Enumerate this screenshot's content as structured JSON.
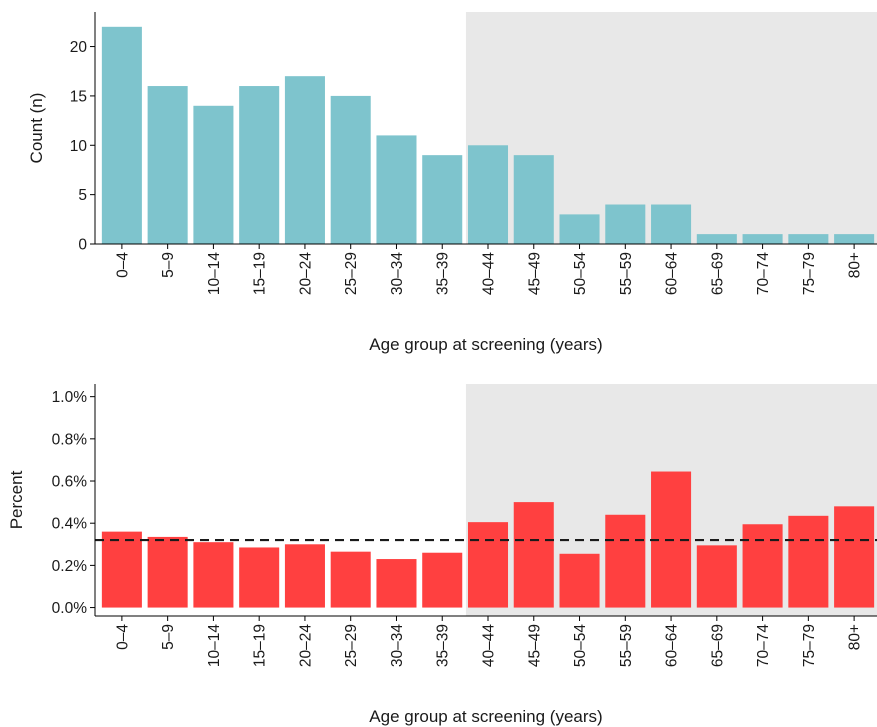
{
  "chart_data": [
    {
      "type": "bar",
      "categories": [
        "0–4",
        "5–9",
        "10–14",
        "15–19",
        "20–24",
        "25–29",
        "30–34",
        "35–39",
        "40–44",
        "45–49",
        "50–54",
        "55–59",
        "60–64",
        "65–69",
        "70–74",
        "75–79",
        "80+"
      ],
      "values": [
        22,
        16,
        14,
        16,
        17,
        15,
        11,
        9,
        10,
        9,
        3,
        4,
        4,
        1,
        1,
        1,
        1
      ],
      "xlabel": "Age group at screening (years)",
      "ylabel": "Count (n)",
      "ylim": [
        0,
        23.5
      ],
      "yticks": [
        0,
        5,
        10,
        15,
        20
      ],
      "ytick_labels": [
        "0",
        "5",
        "10",
        "15",
        "20"
      ],
      "shaded_from_category": "40–44",
      "grid": false,
      "colors": {
        "bar": "#7ec4cd",
        "shade": "#e8e8e8"
      }
    },
    {
      "type": "bar",
      "categories": [
        "0–4",
        "5–9",
        "10–14",
        "15–19",
        "20–24",
        "25–29",
        "30–34",
        "35–39",
        "40–44",
        "45–49",
        "50–54",
        "55–59",
        "60–64",
        "65–69",
        "70–74",
        "75–79",
        "80+"
      ],
      "values": [
        0.36,
        0.335,
        0.31,
        0.285,
        0.3,
        0.265,
        0.23,
        0.26,
        0.405,
        0.5,
        0.255,
        0.44,
        0.645,
        0.295,
        0.395,
        0.435,
        0.48
      ],
      "xlabel": "Age group at screening (years)",
      "ylabel": "Percent",
      "ylim": [
        -0.04,
        1.06
      ],
      "yticks": [
        0.0,
        0.2,
        0.4,
        0.6,
        0.8,
        1.0
      ],
      "ytick_labels": [
        "0.0%",
        "0.2%",
        "0.4%",
        "0.6%",
        "0.8%",
        "1.0%"
      ],
      "reference_line": 0.32,
      "shaded_from_category": "40–44",
      "grid": false,
      "colors": {
        "bar": "#ff4040",
        "shade": "#e8e8e8",
        "reference_line": "#1a1a1a"
      }
    }
  ]
}
